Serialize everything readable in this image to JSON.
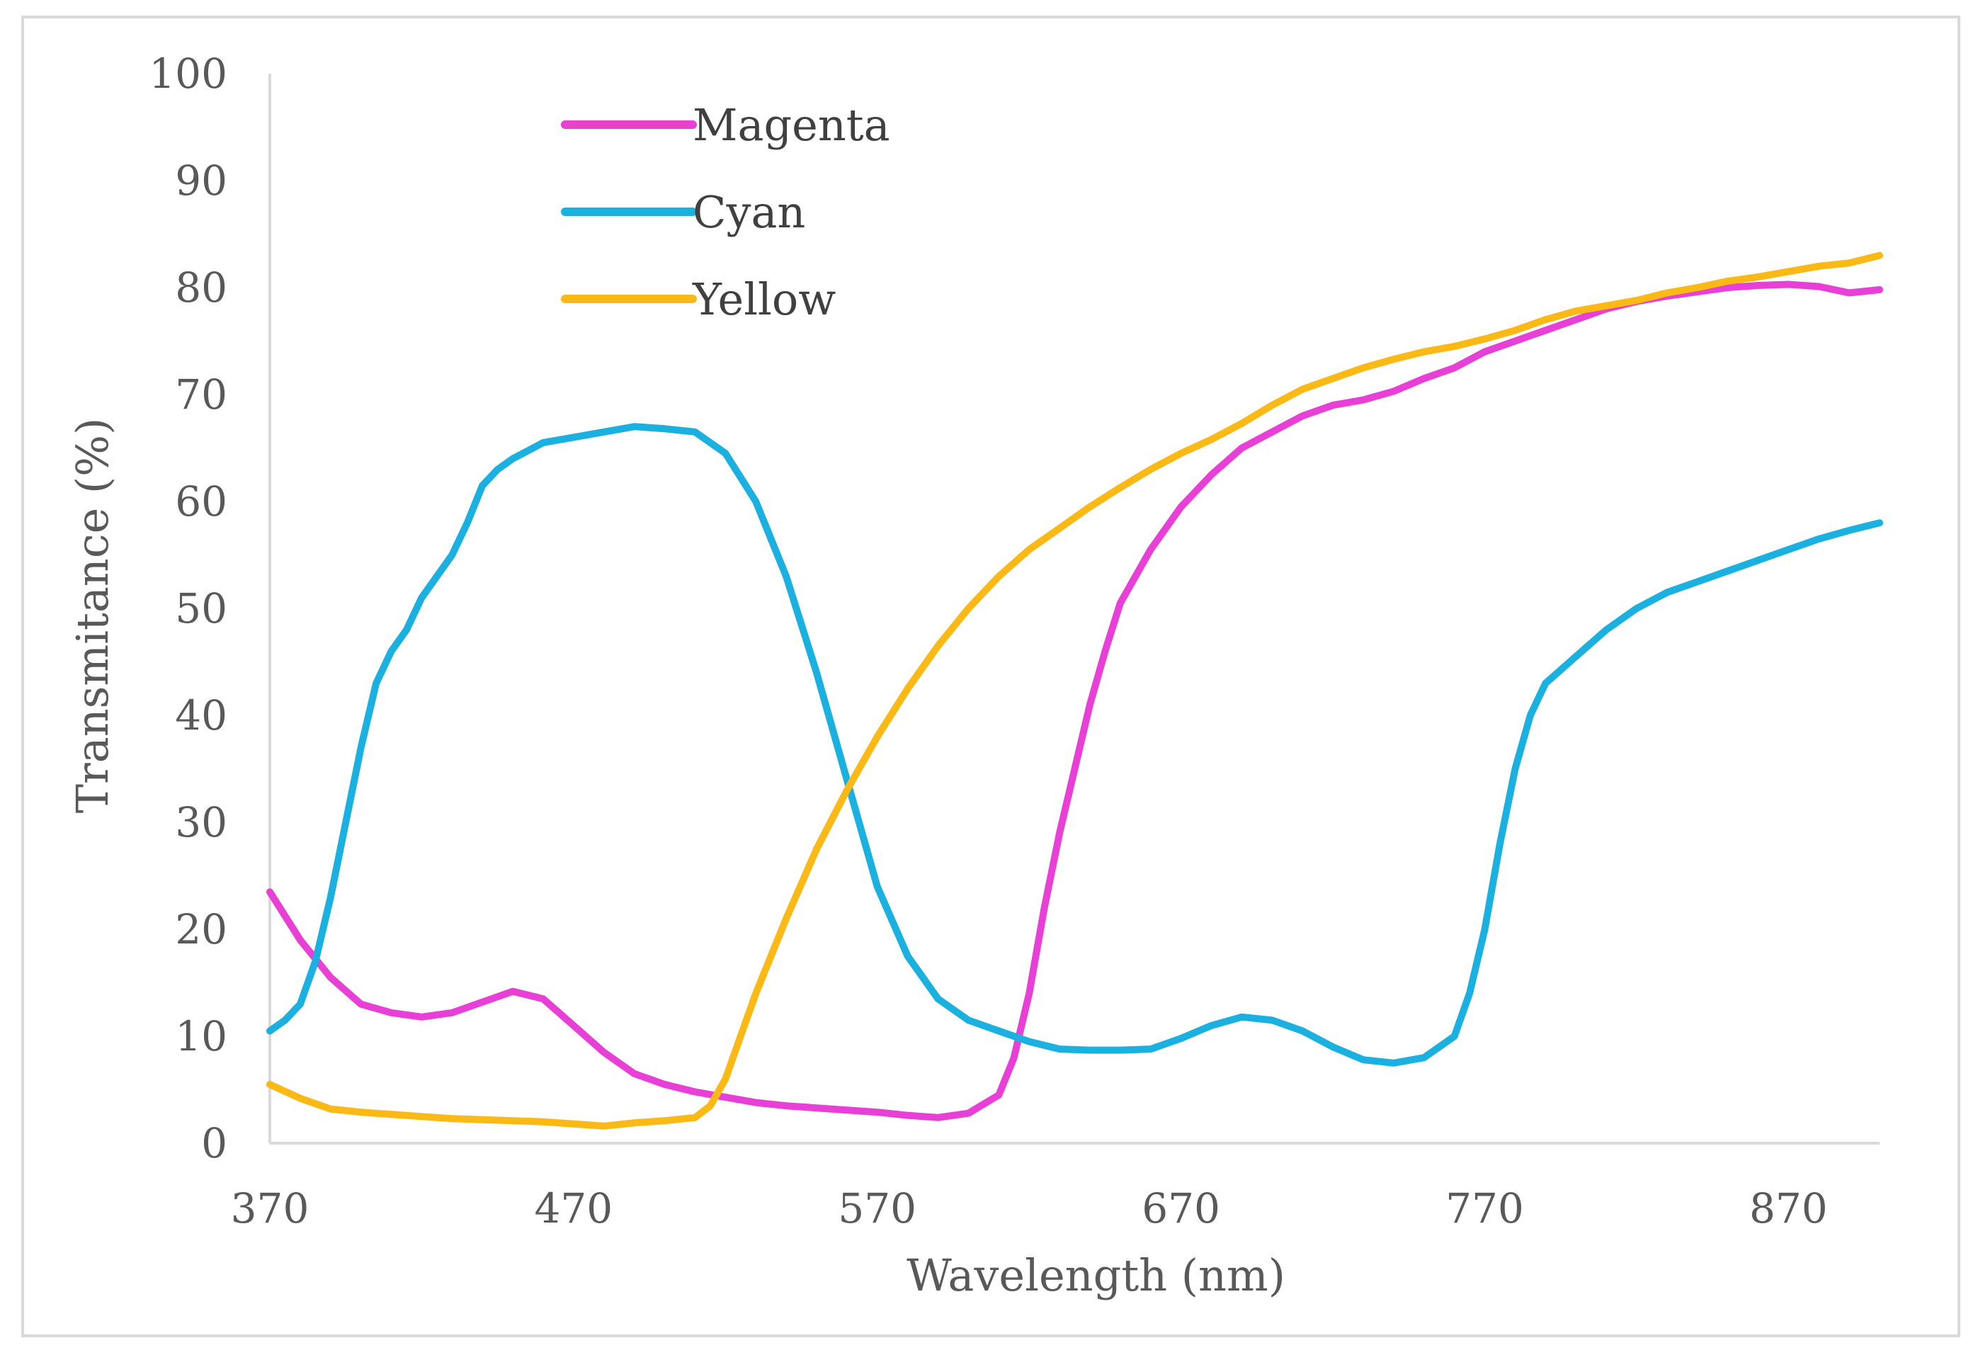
{
  "chart_data": {
    "type": "line",
    "title": "",
    "xlabel": "Wavelength (nm)",
    "ylabel": "Transmitance (%)",
    "xlim": [
      370,
      900
    ],
    "ylim": [
      0,
      100
    ],
    "xticks": [
      370,
      470,
      570,
      670,
      770,
      870
    ],
    "yticks": [
      0,
      10,
      20,
      30,
      40,
      50,
      60,
      70,
      80,
      90,
      100
    ],
    "legend_position": "top-left",
    "grid": false,
    "series": [
      {
        "name": "Magenta",
        "color": "#e83fd6",
        "points": [
          [
            370,
            23.5
          ],
          [
            380,
            19
          ],
          [
            390,
            15.5
          ],
          [
            400,
            13
          ],
          [
            410,
            12.2
          ],
          [
            420,
            11.8
          ],
          [
            430,
            12.2
          ],
          [
            440,
            13.2
          ],
          [
            450,
            14.2
          ],
          [
            460,
            13.5
          ],
          [
            470,
            11
          ],
          [
            480,
            8.5
          ],
          [
            490,
            6.5
          ],
          [
            500,
            5.5
          ],
          [
            510,
            4.8
          ],
          [
            520,
            4.3
          ],
          [
            530,
            3.8
          ],
          [
            540,
            3.5
          ],
          [
            550,
            3.3
          ],
          [
            560,
            3.1
          ],
          [
            570,
            2.9
          ],
          [
            580,
            2.6
          ],
          [
            590,
            2.4
          ],
          [
            600,
            2.8
          ],
          [
            610,
            4.5
          ],
          [
            615,
            8
          ],
          [
            620,
            14
          ],
          [
            625,
            22
          ],
          [
            630,
            29
          ],
          [
            635,
            35
          ],
          [
            640,
            41
          ],
          [
            645,
            46
          ],
          [
            650,
            50.5
          ],
          [
            660,
            55.5
          ],
          [
            670,
            59.5
          ],
          [
            680,
            62.5
          ],
          [
            690,
            65
          ],
          [
            700,
            66.5
          ],
          [
            710,
            68
          ],
          [
            720,
            69
          ],
          [
            730,
            69.5
          ],
          [
            740,
            70.3
          ],
          [
            750,
            71.5
          ],
          [
            760,
            72.5
          ],
          [
            770,
            74
          ],
          [
            780,
            75
          ],
          [
            790,
            76
          ],
          [
            800,
            77
          ],
          [
            810,
            78
          ],
          [
            820,
            78.7
          ],
          [
            830,
            79.2
          ],
          [
            840,
            79.6
          ],
          [
            850,
            80
          ],
          [
            860,
            80.2
          ],
          [
            870,
            80.3
          ],
          [
            880,
            80.1
          ],
          [
            890,
            79.5
          ],
          [
            900,
            79.8
          ]
        ]
      },
      {
        "name": "Cyan",
        "color": "#1ab0e0",
        "points": [
          [
            370,
            10.5
          ],
          [
            375,
            11.5
          ],
          [
            380,
            13
          ],
          [
            385,
            17
          ],
          [
            390,
            23
          ],
          [
            395,
            30
          ],
          [
            400,
            37
          ],
          [
            405,
            43
          ],
          [
            410,
            46
          ],
          [
            415,
            48
          ],
          [
            420,
            51
          ],
          [
            425,
            53
          ],
          [
            430,
            55
          ],
          [
            435,
            58
          ],
          [
            440,
            61.5
          ],
          [
            445,
            63
          ],
          [
            450,
            64
          ],
          [
            460,
            65.5
          ],
          [
            470,
            66
          ],
          [
            480,
            66.5
          ],
          [
            490,
            67
          ],
          [
            500,
            66.8
          ],
          [
            510,
            66.5
          ],
          [
            520,
            64.5
          ],
          [
            530,
            60
          ],
          [
            540,
            53
          ],
          [
            550,
            44
          ],
          [
            560,
            34
          ],
          [
            570,
            24
          ],
          [
            580,
            17.5
          ],
          [
            590,
            13.5
          ],
          [
            600,
            11.5
          ],
          [
            610,
            10.5
          ],
          [
            620,
            9.5
          ],
          [
            630,
            8.8
          ],
          [
            640,
            8.7
          ],
          [
            650,
            8.7
          ],
          [
            660,
            8.8
          ],
          [
            670,
            9.8
          ],
          [
            680,
            11
          ],
          [
            690,
            11.8
          ],
          [
            700,
            11.5
          ],
          [
            710,
            10.5
          ],
          [
            720,
            9
          ],
          [
            730,
            7.8
          ],
          [
            740,
            7.5
          ],
          [
            750,
            8
          ],
          [
            760,
            10
          ],
          [
            765,
            14
          ],
          [
            770,
            20
          ],
          [
            775,
            28
          ],
          [
            780,
            35
          ],
          [
            785,
            40
          ],
          [
            790,
            43
          ],
          [
            800,
            45.5
          ],
          [
            810,
            48
          ],
          [
            820,
            50
          ],
          [
            830,
            51.5
          ],
          [
            840,
            52.5
          ],
          [
            850,
            53.5
          ],
          [
            860,
            54.5
          ],
          [
            870,
            55.5
          ],
          [
            880,
            56.5
          ],
          [
            890,
            57.3
          ],
          [
            900,
            58
          ]
        ]
      },
      {
        "name": "Yellow",
        "color": "#fbb916",
        "points": [
          [
            370,
            5.5
          ],
          [
            380,
            4.2
          ],
          [
            390,
            3.2
          ],
          [
            400,
            2.9
          ],
          [
            410,
            2.7
          ],
          [
            420,
            2.5
          ],
          [
            430,
            2.3
          ],
          [
            440,
            2.2
          ],
          [
            450,
            2.1
          ],
          [
            460,
            2
          ],
          [
            470,
            1.8
          ],
          [
            480,
            1.6
          ],
          [
            490,
            1.9
          ],
          [
            500,
            2.1
          ],
          [
            510,
            2.4
          ],
          [
            515,
            3.5
          ],
          [
            520,
            6
          ],
          [
            525,
            10
          ],
          [
            530,
            14
          ],
          [
            540,
            21
          ],
          [
            550,
            27.5
          ],
          [
            560,
            33
          ],
          [
            570,
            38
          ],
          [
            580,
            42.5
          ],
          [
            590,
            46.5
          ],
          [
            600,
            50
          ],
          [
            610,
            53
          ],
          [
            620,
            55.5
          ],
          [
            630,
            57.5
          ],
          [
            640,
            59.5
          ],
          [
            650,
            61.3
          ],
          [
            660,
            63
          ],
          [
            670,
            64.5
          ],
          [
            680,
            65.8
          ],
          [
            690,
            67.3
          ],
          [
            700,
            69
          ],
          [
            710,
            70.5
          ],
          [
            720,
            71.5
          ],
          [
            730,
            72.5
          ],
          [
            740,
            73.3
          ],
          [
            750,
            74
          ],
          [
            760,
            74.5
          ],
          [
            770,
            75.2
          ],
          [
            780,
            76
          ],
          [
            790,
            77
          ],
          [
            800,
            77.8
          ],
          [
            810,
            78.3
          ],
          [
            820,
            78.8
          ],
          [
            830,
            79.5
          ],
          [
            840,
            80
          ],
          [
            850,
            80.6
          ],
          [
            860,
            81
          ],
          [
            870,
            81.5
          ],
          [
            880,
            82
          ],
          [
            890,
            82.3
          ],
          [
            900,
            83
          ]
        ]
      }
    ]
  }
}
